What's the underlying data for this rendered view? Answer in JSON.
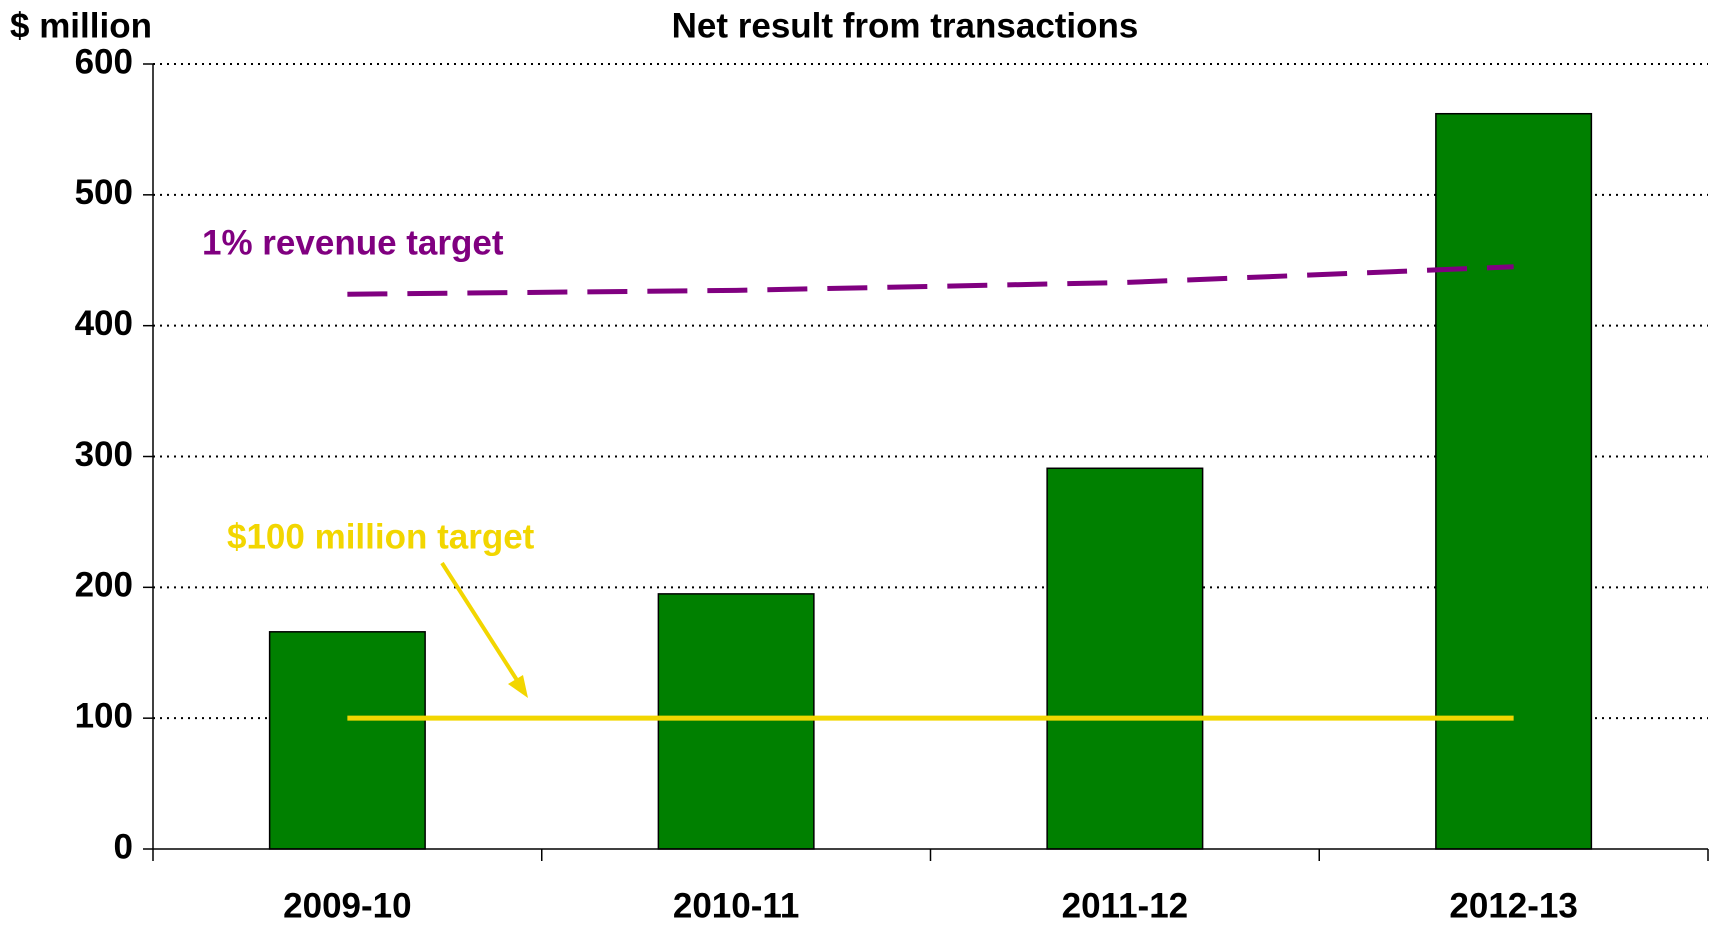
{
  "chart_data": {
    "type": "bar",
    "title": "Net result from transactions",
    "y_axis_label": "$ million",
    "categories": [
      "2009-10",
      "2010-11",
      "2011-12",
      "2012-13"
    ],
    "values": [
      166,
      195,
      291,
      562
    ],
    "color": "#008000",
    "lines": [
      {
        "name": "1% revenue target",
        "color": "#800080",
        "dashed": true,
        "values": [
          424,
          427,
          433,
          445
        ]
      },
      {
        "name": "$100 million target",
        "color": "#f2d600",
        "dashed": false,
        "values": [
          100,
          100,
          100,
          100
        ]
      }
    ],
    "ylim": [
      0,
      600
    ],
    "yticks": [
      0,
      100,
      200,
      300,
      400,
      500,
      600
    ],
    "grid": true
  }
}
